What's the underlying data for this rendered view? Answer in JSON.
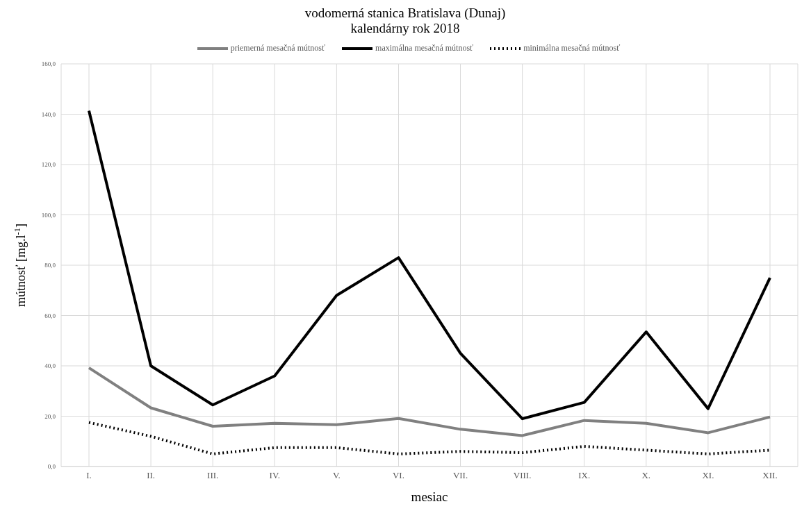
{
  "chart_data": {
    "type": "line",
    "title": "vodomerná stanica Bratislava (Dunaj)",
    "subtitle": "kalendárny rok 2018",
    "xlabel": "mesiac",
    "ylabel": "mútnosť [mg.l$^{-1}$]",
    "categories": [
      "I.",
      "II.",
      "III.",
      "IV.",
      "V.",
      "VI.",
      "VII.",
      "VIII.",
      "IX.",
      "X.",
      "XI.",
      "XII."
    ],
    "series": [
      {
        "name": "priemerná mesačná mútnosť",
        "color": "#808080",
        "line_style": "solid",
        "values": [
          39.2,
          23.3,
          16,
          17.2,
          16.6,
          19.1,
          14.8,
          12.3,
          18.3,
          17.2,
          13.4,
          19.7
        ]
      },
      {
        "name": "maximálna mesačná mútnosť",
        "color": "#000000",
        "line_style": "solid",
        "values": [
          141.4,
          40,
          24.5,
          36,
          68,
          83,
          45,
          19,
          25.5,
          53.5,
          23,
          75
        ]
      },
      {
        "name": "minimálna mesačná mútnosť",
        "color": "#000000",
        "line_style": "dotted",
        "values": [
          17.5,
          12,
          5,
          7.5,
          7.5,
          5,
          6,
          5.5,
          8,
          6.5,
          5,
          6.5
        ]
      }
    ],
    "ylim": [
      0,
      160
    ],
    "yticks": [
      {
        "value": 0,
        "label": "0,0"
      },
      {
        "value": 20,
        "label": "20,0"
      },
      {
        "value": 40,
        "label": "40,0"
      },
      {
        "value": 60,
        "label": "60,0"
      },
      {
        "value": 80,
        "label": "80,0"
      },
      {
        "value": 100,
        "label": "100,0"
      },
      {
        "value": 120,
        "label": "120,0"
      },
      {
        "value": 140,
        "label": "140,0"
      },
      {
        "value": 160,
        "label": "160,0"
      }
    ],
    "grid": true,
    "legend": "top",
    "marker": "none"
  }
}
